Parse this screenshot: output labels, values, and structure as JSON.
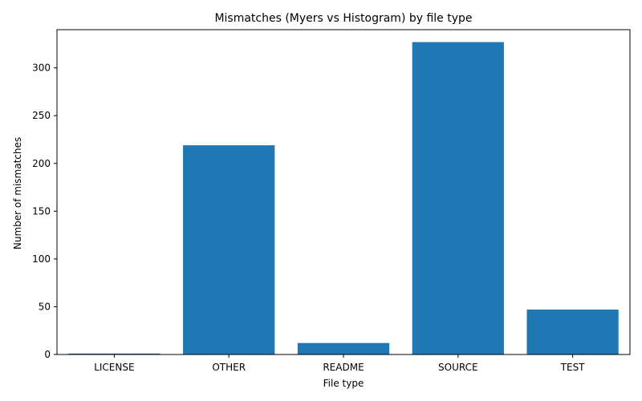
{
  "chart_data": {
    "type": "bar",
    "title": "Mismatches (Myers vs Histogram) by file type",
    "xlabel": "File type",
    "ylabel": "Number of mismatches",
    "categories": [
      "LICENSE",
      "OTHER",
      "README",
      "SOURCE",
      "TEST"
    ],
    "values": [
      1,
      219,
      12,
      327,
      47
    ],
    "ylim": [
      0,
      340
    ],
    "yticks": [
      0,
      50,
      100,
      150,
      200,
      250,
      300
    ],
    "grid": false,
    "legend": "none",
    "bar_color": "#1f77b4"
  }
}
